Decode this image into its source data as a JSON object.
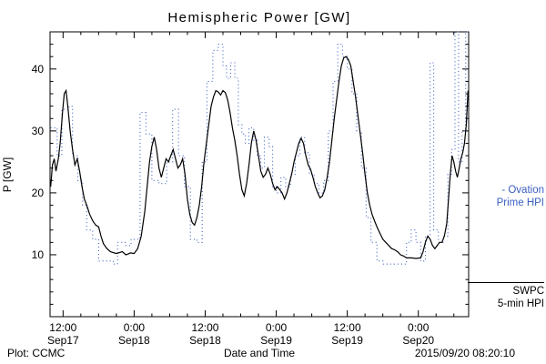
{
  "title": "Hemispheric Power [GW]",
  "footer": {
    "plot_credit": "Plot: CCMC",
    "xlabel": "Date and Time",
    "timestamp": "2015/09/20 08:20:10"
  },
  "legend": {
    "ovation": {
      "line1": "- Ovation",
      "line2": "Prime HPI",
      "color": "#3a5fc0"
    },
    "swpc": {
      "line1": "SWPC",
      "line2": "5-min HPI",
      "color": "#000000"
    }
  },
  "chart_data": {
    "type": "line",
    "title": "Hemispheric Power [GW]",
    "xlabel": "Date and Time",
    "ylabel": "P [GW]",
    "ylim": [
      0,
      46
    ],
    "xlim_hours": [
      9.8,
      80.5
    ],
    "grid": false,
    "legend_position": "right-outside",
    "y_ticks": [
      10,
      20,
      30,
      40
    ],
    "x_ticks": [
      {
        "hours": 12,
        "time": "12:00",
        "date": "Sep17"
      },
      {
        "hours": 24,
        "time": "0:00",
        "date": "Sep18"
      },
      {
        "hours": 36,
        "time": "12:00",
        "date": "Sep18"
      },
      {
        "hours": 48,
        "time": "0:00",
        "date": "Sep19"
      },
      {
        "hours": 60,
        "time": "12:00",
        "date": "Sep19"
      },
      {
        "hours": 72,
        "time": "0:00",
        "date": "Sep20"
      }
    ],
    "series": [
      {
        "name": "Ovation Prime HPI",
        "style": "dotted-step",
        "color": "#3a5fc0",
        "points": [
          [
            9.9,
            30.5
          ],
          [
            11,
            26
          ],
          [
            11.8,
            33.5
          ],
          [
            13,
            34
          ],
          [
            13.6,
            26
          ],
          [
            14.5,
            22
          ],
          [
            15.3,
            18
          ],
          [
            16,
            14
          ],
          [
            17,
            12.5
          ],
          [
            18,
            9
          ],
          [
            20.5,
            8.5
          ],
          [
            21.2,
            12
          ],
          [
            22.5,
            11.5
          ],
          [
            23.5,
            12.5
          ],
          [
            25,
            33
          ],
          [
            26,
            29.5
          ],
          [
            27,
            22
          ],
          [
            28.2,
            21.5
          ],
          [
            29.5,
            25
          ],
          [
            30.5,
            33.5
          ],
          [
            31.5,
            26
          ],
          [
            32.5,
            21
          ],
          [
            33.5,
            12.5
          ],
          [
            34.6,
            12
          ],
          [
            35.5,
            25
          ],
          [
            36.3,
            38
          ],
          [
            37.3,
            43
          ],
          [
            38.2,
            44
          ],
          [
            39,
            40.5
          ],
          [
            39.6,
            38.5
          ],
          [
            40.3,
            41
          ],
          [
            41,
            38.5
          ],
          [
            41.6,
            31
          ],
          [
            42.2,
            29.5
          ],
          [
            42.8,
            28
          ],
          [
            43.4,
            30.5
          ],
          [
            44.2,
            28.5
          ],
          [
            44.8,
            26
          ],
          [
            45.4,
            24
          ],
          [
            46,
            29
          ],
          [
            46.8,
            27.5
          ],
          [
            47.4,
            21
          ],
          [
            48,
            20
          ],
          [
            48.8,
            22.5
          ],
          [
            49.6,
            21
          ],
          [
            50.4,
            23
          ],
          [
            51.2,
            26
          ],
          [
            52,
            29
          ],
          [
            52.8,
            26.5
          ],
          [
            53.6,
            23
          ],
          [
            54.4,
            21.5
          ],
          [
            55.2,
            20
          ],
          [
            56,
            22
          ],
          [
            56.8,
            30
          ],
          [
            57.6,
            38
          ],
          [
            58.4,
            44
          ],
          [
            59.2,
            42
          ],
          [
            60,
            40
          ],
          [
            60.8,
            36
          ],
          [
            61.6,
            30
          ],
          [
            62.4,
            24
          ],
          [
            63.2,
            16
          ],
          [
            64,
            12
          ],
          [
            65,
            9
          ],
          [
            66,
            8.5
          ],
          [
            68,
            8.5
          ],
          [
            70,
            12
          ],
          [
            70.8,
            14
          ],
          [
            71.6,
            12
          ],
          [
            72.4,
            9
          ],
          [
            73.2,
            13
          ],
          [
            74,
            41
          ],
          [
            74.6,
            14
          ],
          [
            75.4,
            12
          ],
          [
            76.2,
            13
          ],
          [
            77,
            23
          ],
          [
            77.6,
            27
          ],
          [
            78.2,
            46
          ],
          [
            78.8,
            25
          ],
          [
            79.4,
            30
          ],
          [
            80,
            46
          ],
          [
            80.5,
            46
          ]
        ]
      },
      {
        "name": "SWPC 5-min HPI",
        "style": "solid",
        "color": "#000000",
        "points": [
          [
            9.9,
            21
          ],
          [
            10.2,
            24.5
          ],
          [
            10.5,
            25.5
          ],
          [
            10.8,
            23.5
          ],
          [
            11.2,
            25.5
          ],
          [
            11.5,
            28
          ],
          [
            11.9,
            33
          ],
          [
            12.2,
            36
          ],
          [
            12.5,
            36.5
          ],
          [
            12.8,
            34
          ],
          [
            13.2,
            30
          ],
          [
            13.6,
            27
          ],
          [
            14.0,
            24.5
          ],
          [
            14.4,
            25.5
          ],
          [
            14.8,
            23.5
          ],
          [
            15.2,
            21
          ],
          [
            15.6,
            19
          ],
          [
            16.0,
            18
          ],
          [
            16.5,
            16.5
          ],
          [
            17.0,
            15.5
          ],
          [
            17.5,
            14.8
          ],
          [
            18.0,
            14.5
          ],
          [
            18.4,
            13
          ],
          [
            18.8,
            11.8
          ],
          [
            19.4,
            11
          ],
          [
            20.0,
            10.5
          ],
          [
            21.0,
            10.2
          ],
          [
            22.0,
            10.5
          ],
          [
            22.6,
            10
          ],
          [
            23.4,
            10.3
          ],
          [
            24.0,
            10.2
          ],
          [
            24.6,
            11
          ],
          [
            25.2,
            13
          ],
          [
            25.8,
            17
          ],
          [
            26.2,
            21
          ],
          [
            26.6,
            25
          ],
          [
            27.0,
            27.5
          ],
          [
            27.4,
            29
          ],
          [
            27.8,
            27
          ],
          [
            28.2,
            24
          ],
          [
            28.6,
            22.5
          ],
          [
            29.0,
            24
          ],
          [
            29.4,
            25.5
          ],
          [
            29.8,
            25
          ],
          [
            30.2,
            26
          ],
          [
            30.6,
            27
          ],
          [
            31.0,
            25.5
          ],
          [
            31.4,
            24
          ],
          [
            31.8,
            24.5
          ],
          [
            32.2,
            25.5
          ],
          [
            32.6,
            23
          ],
          [
            33.0,
            19
          ],
          [
            33.4,
            16.5
          ],
          [
            33.8,
            15.2
          ],
          [
            34.2,
            14.8
          ],
          [
            34.6,
            16
          ],
          [
            35.0,
            18
          ],
          [
            35.4,
            21
          ],
          [
            35.8,
            25
          ],
          [
            36.2,
            28
          ],
          [
            36.6,
            31
          ],
          [
            37.0,
            34
          ],
          [
            37.4,
            35.5
          ],
          [
            37.8,
            36.5
          ],
          [
            38.2,
            36.3
          ],
          [
            38.6,
            35.8
          ],
          [
            39.0,
            36.5
          ],
          [
            39.4,
            36.2
          ],
          [
            39.8,
            35
          ],
          [
            40.2,
            33
          ],
          [
            40.6,
            30.5
          ],
          [
            41.0,
            28.5
          ],
          [
            41.4,
            26
          ],
          [
            41.8,
            23
          ],
          [
            42.2,
            20.5
          ],
          [
            42.6,
            19.5
          ],
          [
            43.0,
            21.5
          ],
          [
            43.4,
            24.5
          ],
          [
            43.8,
            28
          ],
          [
            44.2,
            30
          ],
          [
            44.6,
            28.5
          ],
          [
            45.0,
            26
          ],
          [
            45.4,
            23.5
          ],
          [
            45.8,
            22.5
          ],
          [
            46.2,
            23
          ],
          [
            46.6,
            24
          ],
          [
            47.0,
            23
          ],
          [
            47.4,
            21.5
          ],
          [
            47.8,
            20.5
          ],
          [
            48.2,
            21
          ],
          [
            48.6,
            20.5
          ],
          [
            49.0,
            20
          ],
          [
            49.4,
            19
          ],
          [
            49.8,
            20
          ],
          [
            50.2,
            21.5
          ],
          [
            50.6,
            23
          ],
          [
            51.0,
            25
          ],
          [
            51.4,
            26.5
          ],
          [
            51.8,
            28
          ],
          [
            52.2,
            28.8
          ],
          [
            52.6,
            28
          ],
          [
            53.0,
            26
          ],
          [
            53.4,
            24.5
          ],
          [
            53.8,
            23.8
          ],
          [
            54.2,
            22.5
          ],
          [
            54.6,
            21
          ],
          [
            55.0,
            20
          ],
          [
            55.4,
            19.2
          ],
          [
            55.8,
            19.5
          ],
          [
            56.2,
            20.5
          ],
          [
            56.6,
            22.5
          ],
          [
            57.0,
            25
          ],
          [
            57.4,
            28.5
          ],
          [
            57.8,
            32
          ],
          [
            58.2,
            35
          ],
          [
            58.6,
            38
          ],
          [
            59.0,
            40.5
          ],
          [
            59.4,
            41.8
          ],
          [
            59.8,
            42
          ],
          [
            60.2,
            41.5
          ],
          [
            60.6,
            40.5
          ],
          [
            61.0,
            38
          ],
          [
            61.4,
            35.5
          ],
          [
            61.8,
            32.5
          ],
          [
            62.2,
            29.5
          ],
          [
            62.6,
            26.5
          ],
          [
            63.0,
            23
          ],
          [
            63.4,
            20
          ],
          [
            63.8,
            18
          ],
          [
            64.2,
            16.5
          ],
          [
            64.6,
            15.5
          ],
          [
            65.0,
            14.5
          ],
          [
            65.5,
            13.5
          ],
          [
            66.0,
            12.5
          ],
          [
            66.5,
            12
          ],
          [
            67.0,
            11.5
          ],
          [
            67.5,
            11
          ],
          [
            68.0,
            10.8
          ],
          [
            68.5,
            10.5
          ],
          [
            69.0,
            10
          ],
          [
            69.5,
            9.8
          ],
          [
            70.0,
            9.5
          ],
          [
            70.8,
            9.5
          ],
          [
            71.6,
            9.4
          ],
          [
            72.4,
            9.5
          ],
          [
            72.8,
            10.5
          ],
          [
            73.2,
            12
          ],
          [
            73.6,
            13
          ],
          [
            74.0,
            12.5
          ],
          [
            74.4,
            11.5
          ],
          [
            74.8,
            11
          ],
          [
            75.2,
            11.5
          ],
          [
            75.6,
            12
          ],
          [
            76.0,
            12
          ],
          [
            76.4,
            13
          ],
          [
            76.8,
            15
          ],
          [
            77.1,
            19
          ],
          [
            77.4,
            23
          ],
          [
            77.7,
            26
          ],
          [
            78.0,
            25
          ],
          [
            78.3,
            23.5
          ],
          [
            78.6,
            22.5
          ],
          [
            78.9,
            24
          ],
          [
            79.2,
            25.5
          ],
          [
            79.5,
            26.5
          ],
          [
            79.8,
            28
          ],
          [
            80.1,
            31
          ],
          [
            80.4,
            36.5
          ]
        ]
      }
    ]
  }
}
